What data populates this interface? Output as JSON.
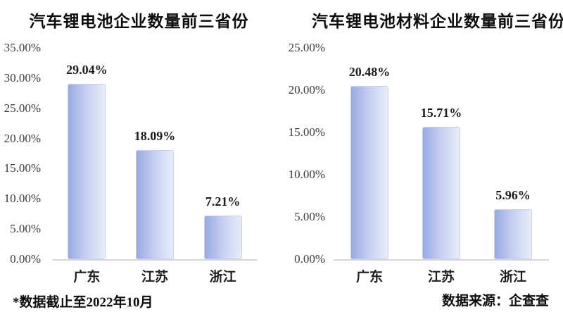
{
  "chart_data": [
    {
      "type": "bar",
      "title": "汽车锂电池企业数量前三省份",
      "categories": [
        "广东",
        "江苏",
        "浙江"
      ],
      "values": [
        29.04,
        18.09,
        7.21
      ],
      "value_labels": [
        "29.04%",
        "18.09%",
        "7.21%"
      ],
      "ylim": [
        0,
        35
      ],
      "ytick_step": 5,
      "yticks": [
        "35.00%",
        "30.00%",
        "25.00%",
        "20.00%",
        "15.00%",
        "10.00%",
        "5.00%",
        "0.00%"
      ],
      "grid": false,
      "legend": "none"
    },
    {
      "type": "bar",
      "title": "汽车锂电池材料企业数量前三省份",
      "categories": [
        "广东",
        "江苏",
        "浙江"
      ],
      "values": [
        20.48,
        15.71,
        5.96
      ],
      "value_labels": [
        "20.48%",
        "15.71%",
        "5.96%"
      ],
      "ylim": [
        0,
        25
      ],
      "ytick_step": 5,
      "yticks": [
        "25.00%",
        "20.00%",
        "15.00%",
        "10.00%",
        "5.00%",
        "0.00%"
      ],
      "grid": false,
      "legend": "none"
    }
  ],
  "footnote": "*数据截止至2022年10月",
  "source": "数据来源：企查查",
  "colors": {
    "bar_gradient_start": "#98AAE2",
    "bar_gradient_end": "#E9EDFA",
    "bar_border": "#C6CFEE",
    "axis_line": "#D7D7D7",
    "tick_text": "#3C3C3C",
    "label_text": "#1C1C1C",
    "background": "#FFFFFF"
  }
}
